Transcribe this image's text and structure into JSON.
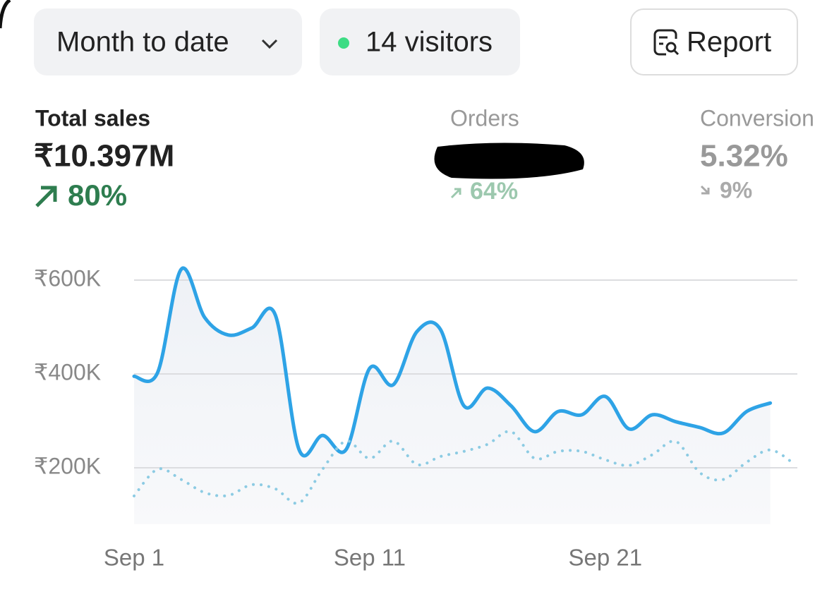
{
  "toolbar": {
    "period": "Month to date",
    "visitors": "14 visitors",
    "report": "Report"
  },
  "metrics": [
    {
      "label": "Total sales",
      "value": "₹10.397M",
      "change": "80%"
    },
    {
      "label": "Orders",
      "change": "64%"
    },
    {
      "label": "Conversion",
      "value": "5.32%",
      "change": "9%"
    }
  ],
  "chart_data": {
    "type": "line",
    "x": [
      1,
      2,
      3,
      4,
      5,
      6,
      7,
      8,
      9,
      10,
      11,
      12,
      13,
      14,
      15,
      16,
      17,
      18,
      19,
      20,
      21,
      22,
      23,
      24,
      25,
      26,
      27,
      28,
      29
    ],
    "xlim": [
      1,
      29
    ],
    "xticks": [
      {
        "value": 1,
        "label": "Sep 1"
      },
      {
        "value": 11,
        "label": "Sep 11"
      },
      {
        "value": 21,
        "label": "Sep 21"
      }
    ],
    "ylim": [
      80000,
      640000
    ],
    "yticks": [
      {
        "value": 200000,
        "label": "₹200K"
      },
      {
        "value": 400000,
        "label": "₹400K"
      },
      {
        "value": 600000,
        "label": "₹600K"
      }
    ],
    "grid": true,
    "series": [
      {
        "color": "#2ea3e6",
        "style": "solid",
        "values": [
          395000,
          403000,
          623000,
          520000,
          483000,
          498000,
          525000,
          239000,
          269000,
          239000,
          412000,
          377000,
          490000,
          495000,
          332000,
          370000,
          332000,
          277000,
          320000,
          313000,
          352000,
          283000,
          313000,
          298000,
          286000,
          274000,
          320000,
          338000,
          null
        ]
      },
      {
        "color": "#8ccbe3",
        "style": "dotted",
        "values": [
          140000,
          197000,
          175000,
          147000,
          141000,
          164000,
          155000,
          125000,
          197000,
          257000,
          220000,
          257000,
          207000,
          224000,
          235000,
          250000,
          277000,
          220000,
          235000,
          235000,
          217000,
          205000,
          228000,
          256000,
          190000,
          175000,
          212000,
          238000,
          209000
        ]
      }
    ]
  }
}
